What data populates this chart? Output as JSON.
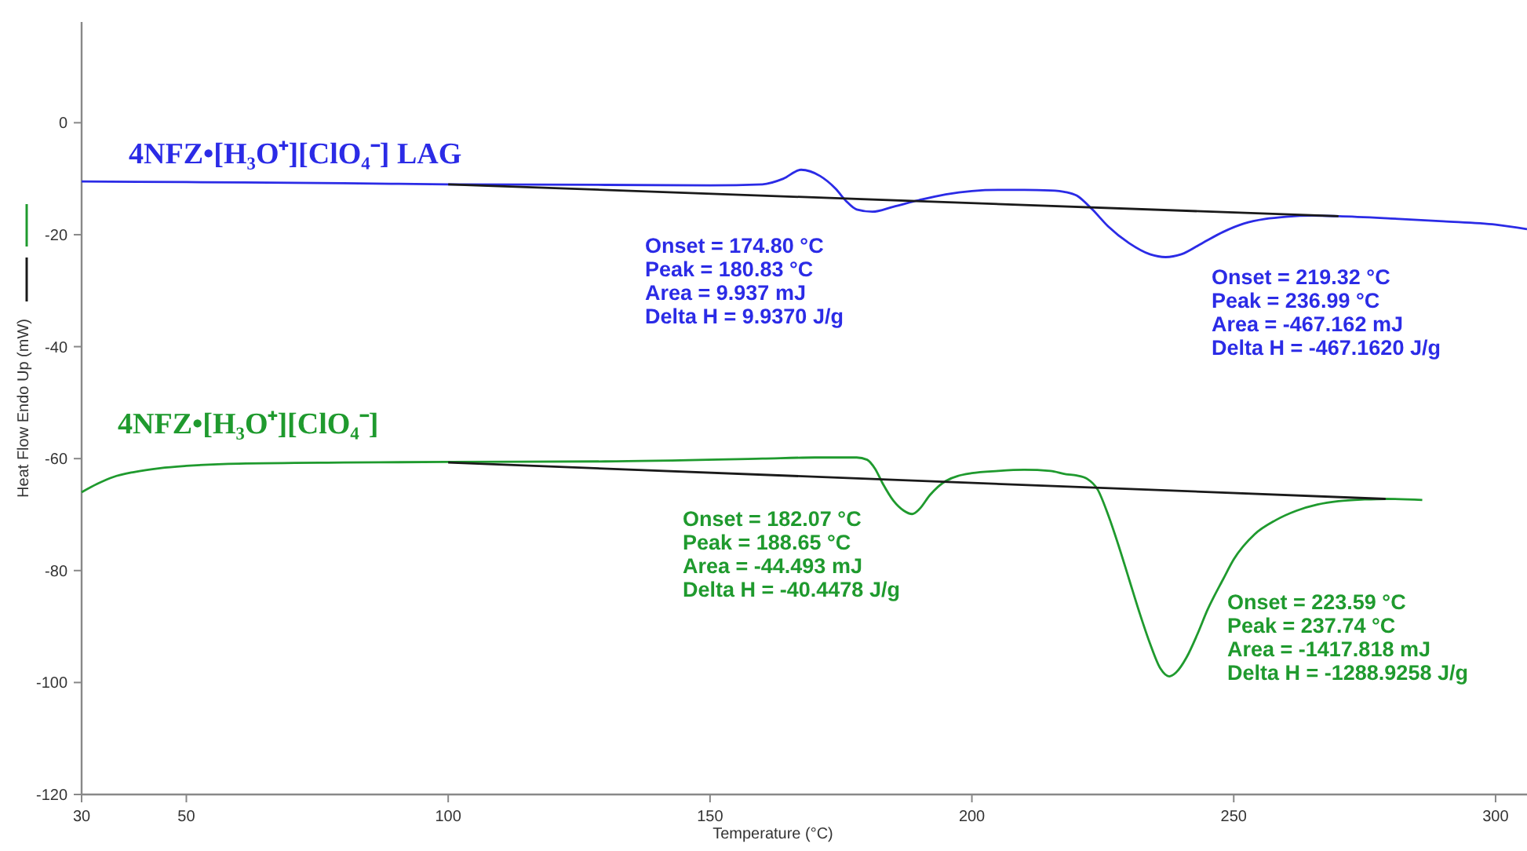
{
  "chart_data": {
    "type": "line",
    "xlabel": "Temperature (°C)",
    "ylabel": "Heat Flow Endo Up (mW)",
    "xlim": [
      30,
      306
    ],
    "xticks": [
      30,
      50,
      100,
      150,
      200,
      250,
      300
    ],
    "ylim": [
      -120,
      18
    ],
    "yticks": [
      -120,
      -100,
      -80,
      -60,
      -40,
      -20,
      0
    ],
    "grid": false,
    "legend": false,
    "marker": "none",
    "line_style": "solid",
    "series": [
      {
        "name": "4NFZ•[H₃O⁺][ClO₄⁻] LAG",
        "color": "#2b2be6",
        "x": [
          30,
          50,
          80,
          100,
          130,
          150,
          160,
          164,
          167.4,
          171,
          174,
          176,
          178,
          181,
          185,
          190,
          195,
          200,
          205,
          210,
          215,
          218,
          220,
          223,
          226,
          230,
          234,
          237,
          240,
          244,
          248,
          252,
          256,
          260,
          265,
          270,
          280,
          290,
          300,
          306
        ],
        "values": [
          -10.5,
          -10.6,
          -10.8,
          -11,
          -11.1,
          -11.2,
          -11,
          -10,
          -8.4,
          -9.5,
          -11.8,
          -14,
          -15.5,
          -15.9,
          -15,
          -13.8,
          -12.8,
          -12.2,
          -12,
          -12,
          -12.1,
          -12.4,
          -13,
          -15.5,
          -18.5,
          -21.5,
          -23.5,
          -24,
          -23.5,
          -21.5,
          -19.5,
          -18,
          -17.2,
          -16.8,
          -16.6,
          -16.7,
          -17.1,
          -17.6,
          -18.2,
          -19
        ]
      },
      {
        "color": "#1a1a1a",
        "x": [
          100,
          270
        ],
        "values": [
          -11,
          -16.7
        ]
      },
      {
        "name": "4NFZ•[H₃O⁺][ClO₄⁻]",
        "color": "#1f9a2e",
        "x": [
          30,
          33,
          36,
          40,
          45,
          50,
          60,
          80,
          100,
          130,
          160,
          170,
          178,
          180,
          181.5,
          183,
          185,
          187,
          188.6,
          190,
          192,
          195,
          200,
          205,
          210,
          215,
          218,
          220,
          222,
          224,
          226,
          228,
          230,
          232,
          234,
          236,
          237.7,
          239,
          241,
          243,
          245,
          248,
          250,
          254,
          258,
          262,
          266,
          270,
          275,
          279,
          286
        ],
        "values": [
          -66,
          -64.5,
          -63.3,
          -62.4,
          -61.7,
          -61.3,
          -60.9,
          -60.7,
          -60.6,
          -60.5,
          -60,
          -59.8,
          -59.8,
          -60.2,
          -61.8,
          -64.5,
          -67.5,
          -69.3,
          -69.9,
          -69,
          -66.5,
          -64,
          -62.6,
          -62.2,
          -62,
          -62.2,
          -62.8,
          -63,
          -63.6,
          -65.5,
          -70,
          -75.5,
          -81.5,
          -87.5,
          -93,
          -97.5,
          -98.9,
          -98.2,
          -95.5,
          -91.5,
          -87,
          -81.5,
          -78,
          -73.5,
          -71,
          -69.3,
          -68.2,
          -67.6,
          -67.3,
          -67.2,
          -67.4
        ]
      },
      {
        "color": "#1a1a1a",
        "x": [
          100,
          279
        ],
        "values": [
          -60.7,
          -67.2
        ]
      }
    ],
    "annotations": [
      "Onset = 174.80 °C\nPeak = 180.83 °C\nArea = 9.937 mJ\nDelta H = 9.9370 J/g",
      "Onset = 219.32 °C\nPeak = 236.99 °C\nArea = -467.162 mJ\nDelta H = -467.1620 J/g",
      "Onset = 182.07 °C\nPeak = 188.65 °C\nArea = -44.493 mJ\nDelta H = -40.4478 J/g",
      "Onset = 223.59 °C\nPeak = 237.74 °C\nArea = -1417.818 mJ\nDelta H = -1288.9258 J/g"
    ]
  }
}
